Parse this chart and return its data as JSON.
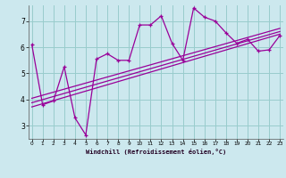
{
  "xlabel": "Windchill (Refroidissement éolien,°C)",
  "bg_color": "#cce8ee",
  "grid_color": "#99cccc",
  "line_color": "#990099",
  "x_main": [
    0,
    1,
    2,
    3,
    4,
    5,
    6,
    7,
    8,
    9,
    10,
    11,
    12,
    13,
    14,
    15,
    16,
    17,
    18,
    19,
    20,
    21,
    22,
    23
  ],
  "y_main": [
    6.1,
    3.8,
    3.95,
    5.25,
    3.3,
    2.65,
    5.55,
    5.75,
    5.5,
    5.5,
    6.85,
    6.85,
    7.2,
    6.15,
    5.5,
    7.5,
    7.15,
    7.0,
    6.55,
    6.15,
    6.3,
    5.85,
    5.9,
    6.45
  ],
  "reg_lines": [
    {
      "x0": 0,
      "y0": 3.72,
      "x1": 23,
      "y1": 6.5
    },
    {
      "x0": 0,
      "y0": 3.88,
      "x1": 23,
      "y1": 6.6
    },
    {
      "x0": 0,
      "y0": 4.05,
      "x1": 23,
      "y1": 6.72
    }
  ],
  "xlim": [
    -0.3,
    23.3
  ],
  "ylim": [
    2.5,
    7.6
  ],
  "yticks": [
    3,
    4,
    5,
    6,
    7
  ],
  "xticks": [
    0,
    1,
    2,
    3,
    4,
    5,
    6,
    7,
    8,
    9,
    10,
    11,
    12,
    13,
    14,
    15,
    16,
    17,
    18,
    19,
    20,
    21,
    22,
    23
  ]
}
